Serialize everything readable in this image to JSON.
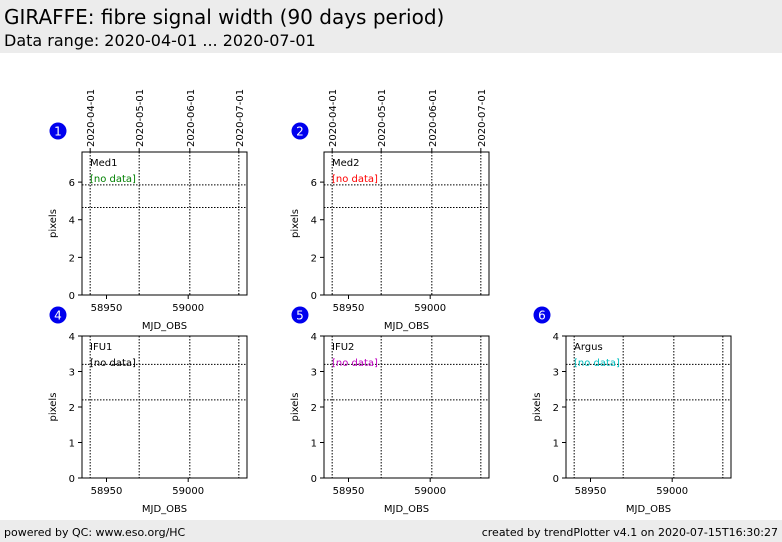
{
  "header": {
    "title": "GIRAFFE: fibre signal width (90 days period)",
    "subtitle": "Data range: 2020-04-01 ... 2020-07-01"
  },
  "footer": {
    "left": "powered by QC: www.eso.org/HC",
    "right": "created by trendPlotter v4.1 on 2020-07-15T16:30:27"
  },
  "theme": {
    "badge_color": "#0000ee",
    "grid_color": "#000000"
  },
  "chart_data": [
    {
      "type": "scatter",
      "number": "1",
      "label": "Med1",
      "status": "[no data]",
      "status_color": "#008000",
      "ylabel": "pixels",
      "xlabel": "MJD_OBS",
      "xlim": [
        58935,
        59036
      ],
      "ylim": [
        0,
        7.6
      ],
      "xticks": [
        58950,
        59000
      ],
      "yticks": [
        0,
        2,
        4,
        6
      ],
      "top_axis_dates": [
        "2020-04-01",
        "2020-05-01",
        "2020-06-01",
        "2020-07-01"
      ],
      "date_mjd": [
        58940,
        58970,
        59001,
        59031
      ],
      "ref_lines": [
        5.85,
        4.65
      ],
      "series": []
    },
    {
      "type": "scatter",
      "number": "2",
      "label": "Med2",
      "status": "[no data]",
      "status_color": "#ff0000",
      "ylabel": "pixels",
      "xlabel": "MJD_OBS",
      "xlim": [
        58935,
        59036
      ],
      "ylim": [
        0,
        7.6
      ],
      "xticks": [
        58950,
        59000
      ],
      "yticks": [
        0,
        2,
        4,
        6
      ],
      "top_axis_dates": [
        "2020-04-01",
        "2020-05-01",
        "2020-06-01",
        "2020-07-01"
      ],
      "date_mjd": [
        58940,
        58970,
        59001,
        59031
      ],
      "ref_lines": [
        5.85,
        4.65
      ],
      "series": []
    },
    {
      "type": "scatter",
      "number": "4",
      "label": "IFU1",
      "status": "[no data]",
      "status_color": "#000000",
      "ylabel": "pixels",
      "xlabel": "MJD_OBS",
      "xlim": [
        58935,
        59036
      ],
      "ylim": [
        0,
        4
      ],
      "xticks": [
        58950,
        59000
      ],
      "yticks": [
        0,
        1,
        2,
        3,
        4
      ],
      "top_axis_dates": [],
      "date_mjd": [
        58940,
        58970,
        59001,
        59031
      ],
      "ref_lines": [
        3.2,
        2.2
      ],
      "series": []
    },
    {
      "type": "scatter",
      "number": "5",
      "label": "IFU2",
      "status": "[no data]",
      "status_color": "#bf00bf",
      "ylabel": "pixels",
      "xlabel": "MJD_OBS",
      "xlim": [
        58935,
        59036
      ],
      "ylim": [
        0,
        4
      ],
      "xticks": [
        58950,
        59000
      ],
      "yticks": [
        0,
        1,
        2,
        3,
        4
      ],
      "top_axis_dates": [],
      "date_mjd": [
        58940,
        58970,
        59001,
        59031
      ],
      "ref_lines": [
        3.2,
        2.2
      ],
      "series": []
    },
    {
      "type": "scatter",
      "number": "6",
      "label": "Argus",
      "status": "[no data]",
      "status_color": "#00bfbf",
      "ylabel": "pixels",
      "xlabel": "MJD_OBS",
      "xlim": [
        58935,
        59036
      ],
      "ylim": [
        0,
        4
      ],
      "xticks": [
        58950,
        59000
      ],
      "yticks": [
        0,
        1,
        2,
        3,
        4
      ],
      "top_axis_dates": [],
      "date_mjd": [
        58940,
        58970,
        59001,
        59031
      ],
      "ref_lines": [
        3.2,
        2.2
      ],
      "series": []
    }
  ]
}
